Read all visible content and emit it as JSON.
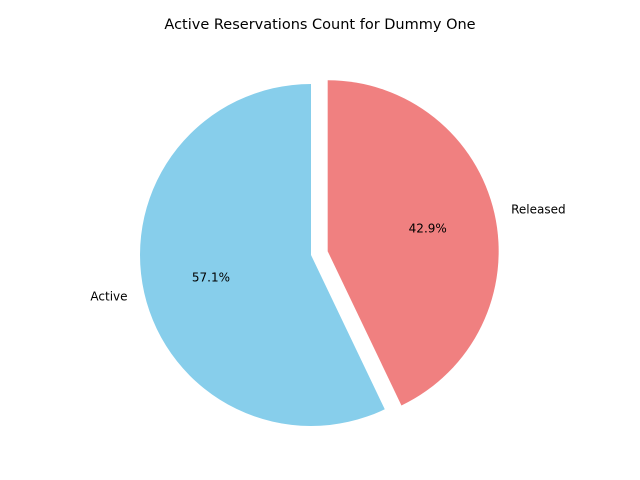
{
  "chart_data": {
    "type": "pie",
    "title": "Active Reservations Count for Dummy One",
    "labels": [
      "Active",
      "Released"
    ],
    "values": [
      57.1,
      42.9
    ],
    "percent_labels": [
      "57.1%",
      "42.9%"
    ],
    "colors": [
      "#87ceeb",
      "#f08080"
    ],
    "explode": [
      0,
      0.1
    ],
    "start_angle_deg": 90,
    "direction": "counterclockwise",
    "legend": "none"
  }
}
